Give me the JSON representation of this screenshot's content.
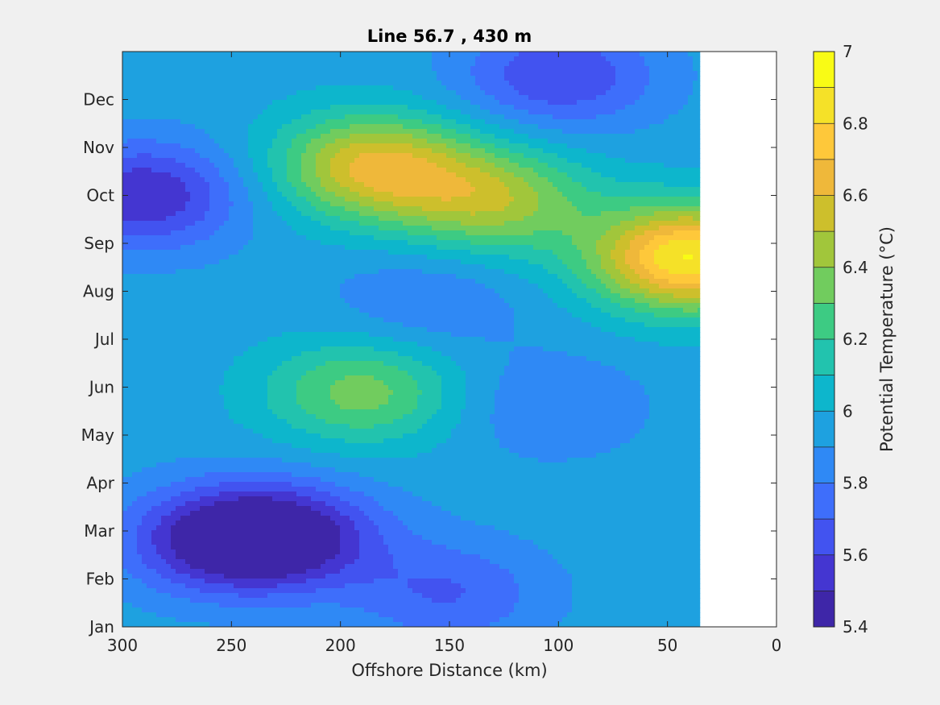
{
  "chart_data": {
    "type": "heatmap",
    "subtype": "filled-contour",
    "title": "Line 56.7 , 430 m",
    "xlabel": "Offshore Distance (km)",
    "ylabel": "",
    "xlim": [
      300,
      0
    ],
    "x_reversed": true,
    "x_ticks": [
      300,
      250,
      200,
      150,
      100,
      50,
      0
    ],
    "x_tick_labels": [
      "300",
      "250",
      "200",
      "150",
      "100",
      "50",
      "0"
    ],
    "ylim": [
      1,
      13
    ],
    "y_ticks": [
      1,
      2,
      3,
      4,
      5,
      6,
      7,
      8,
      9,
      10,
      11,
      12
    ],
    "y_tick_labels": [
      "Jan",
      "Feb",
      "Mar",
      "Apr",
      "May",
      "Jun",
      "Jul",
      "Aug",
      "Sep",
      "Oct",
      "Nov",
      "Dec"
    ],
    "data_x_extent_km": [
      300,
      35
    ],
    "colorbar": {
      "label": "Potential Temperature (°C)",
      "range": [
        5.4,
        7.0
      ],
      "step": 0.1,
      "tick_values": [
        5.4,
        5.6,
        5.8,
        6.0,
        6.2,
        6.4,
        6.6,
        6.8,
        7.0
      ],
      "tick_labels": [
        "5.4",
        "5.6",
        "5.8",
        "6",
        "6.2",
        "6.4",
        "6.6",
        "6.8",
        "7"
      ],
      "colors": [
        "#3e26a8",
        "#4436d1",
        "#4253f0",
        "#3e6efb",
        "#2f89f5",
        "#1ea1e0",
        "#0db6cc",
        "#22c3ae",
        "#3dcb83",
        "#71cc5e",
        "#a1c63b",
        "#cdbf2c",
        "#efb83a",
        "#fec83a",
        "#f5e128",
        "#f9fb15"
      ]
    },
    "grid": false,
    "background_level": 5.95,
    "features": [
      {
        "x": 290,
        "y": 10.0,
        "level": 5.5,
        "note": "cold pocket, west edge Oct"
      },
      {
        "x": 255,
        "y": 2.8,
        "level": 5.5,
        "note": "cold pool Feb-Mar, west"
      },
      {
        "x": 225,
        "y": 2.9,
        "level": 5.5,
        "note": "cold pool Mar"
      },
      {
        "x": 150,
        "y": 1.7,
        "level": 5.7,
        "note": "cool patch Feb"
      },
      {
        "x": 100,
        "y": 12.5,
        "level": 5.6,
        "note": "cool pocket Dec"
      },
      {
        "x": 185,
        "y": 10.6,
        "level": 6.6,
        "note": "warm core Oct-Nov"
      },
      {
        "x": 130,
        "y": 9.9,
        "level": 6.45,
        "note": "warm speck Oct"
      },
      {
        "x": 190,
        "y": 5.9,
        "level": 6.35,
        "note": "warm patch Jun"
      },
      {
        "x": 160,
        "y": 7.8,
        "level": 5.8,
        "note": "cool patch Jul-Aug"
      },
      {
        "x": 105,
        "y": 5.6,
        "level": 5.8,
        "note": "cool patch Jun"
      },
      {
        "x": 40,
        "y": 8.7,
        "level": 6.9,
        "note": "warm core Aug-Sep near shore"
      }
    ]
  }
}
